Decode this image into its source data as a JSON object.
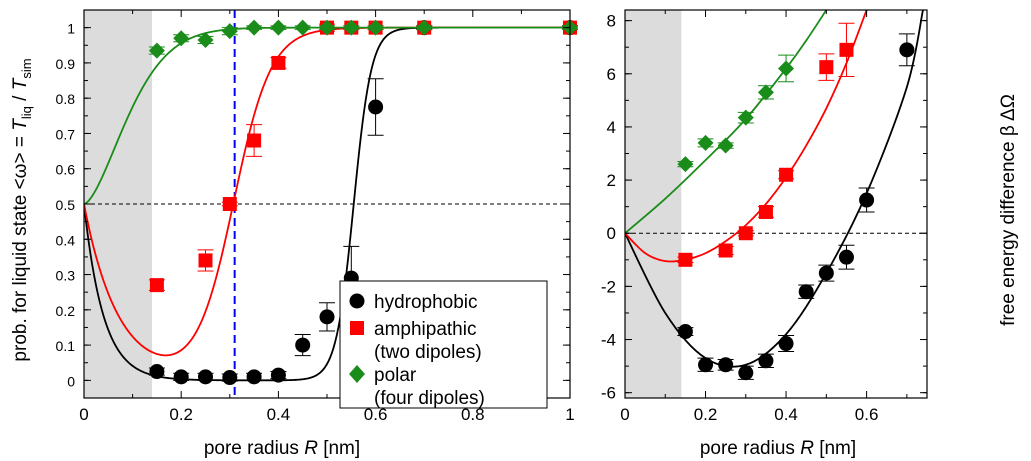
{
  "chart_data": [
    {
      "type": "scatter",
      "xlabel_prefix": "pore radius ",
      "xlabel_var": "R",
      "xlabel_unit": "  [nm]",
      "ylabel": "prob. for liquid state  <ω> = T_liq / T_sim",
      "ylabel_parts": {
        "prefix": "prob. for liquid state  <ω> = ",
        "T": "T",
        "liq": "liq",
        "slash": " / ",
        "sim": "sim"
      },
      "xlim": [
        0,
        1
      ],
      "ylim": [
        -0.05,
        1.05
      ],
      "xticks": [
        0,
        0.2,
        0.4,
        0.6,
        0.8,
        1
      ],
      "xticklabels": [
        "0",
        "0.2",
        "0.4",
        "0.6",
        "0.8",
        "1"
      ],
      "yticks": [
        0,
        0.1,
        0.2,
        0.3,
        0.4,
        0.5,
        0.6,
        0.7,
        0.8,
        0.9,
        1
      ],
      "yticklabels": [
        "0",
        "0.1",
        "0.2",
        "0.3",
        "0.4",
        "0.5",
        "0.6",
        "0.7",
        "0.8",
        "0.9",
        "1"
      ],
      "shaded_region": [
        0,
        0.14
      ],
      "hline": 0.5,
      "vline": 0.31,
      "legend_position": "bottom-right",
      "series": [
        {
          "name": "hydrophobic",
          "color": "#000000",
          "marker": "circle",
          "x": [
            0.15,
            0.2,
            0.25,
            0.3,
            0.35,
            0.4,
            0.45,
            0.5,
            0.55,
            0.6,
            0.7,
            1.0
          ],
          "y": [
            0.025,
            0.01,
            0.01,
            0.008,
            0.01,
            0.015,
            0.1,
            0.18,
            0.29,
            0.775,
            1.0,
            1.0
          ],
          "err": [
            0.01,
            0.01,
            0.01,
            0.01,
            0.01,
            0.01,
            0.03,
            0.04,
            0.09,
            0.08,
            0.005,
            0.005
          ],
          "fit": {
            "r0": 0.555,
            "k": 55,
            "amp": 0.5,
            "decay": 0.04
          }
        },
        {
          "name": "amphipathic",
          "name_line2": "(two dipoles)",
          "color": "#ff0000",
          "marker": "square",
          "x": [
            0.15,
            0.25,
            0.3,
            0.35,
            0.4,
            0.5,
            0.55,
            0.6,
            0.7,
            1.0
          ],
          "y": [
            0.27,
            0.34,
            0.5,
            0.68,
            0.9,
            1.0,
            1.0,
            1.0,
            1.0,
            1.0
          ],
          "err": [
            0.015,
            0.03,
            0.005,
            0.045,
            0.015,
            0.01,
            0.005,
            0.005,
            0.005,
            0.005
          ],
          "fit": {
            "r0": 0.308,
            "k": 26,
            "amp": 0.5,
            "decay": 0.07
          }
        },
        {
          "name": "polar",
          "name_line2": "(four dipoles)",
          "color": "#1a8c1a",
          "marker": "diamond",
          "x": [
            0.15,
            0.2,
            0.25,
            0.3,
            0.35,
            0.4,
            0.45,
            0.5,
            0.55,
            0.6,
            0.7,
            1.0
          ],
          "y": [
            0.935,
            0.97,
            0.965,
            0.99,
            1.0,
            1.0,
            1.0,
            1.0,
            1.0,
            1.0,
            1.0,
            1.0
          ],
          "err": [
            0.01,
            0.01,
            0.01,
            0.01,
            0.005,
            0.005,
            0.005,
            0.005,
            0.005,
            0.005,
            0.005,
            0.005
          ]
        }
      ]
    },
    {
      "type": "scatter",
      "xlabel_prefix": "pore radius ",
      "xlabel_var": "R",
      "xlabel_unit": "  [nm]",
      "ylabel": "free energy difference   β ΔΩ",
      "xlim": [
        0,
        0.75
      ],
      "ylim": [
        -6.2,
        8.4
      ],
      "xticks": [
        0,
        0.2,
        0.4,
        0.6
      ],
      "xticklabels": [
        "0",
        "0.2",
        "0.4",
        "0.6"
      ],
      "yticks": [
        -6,
        -4,
        -2,
        0,
        2,
        4,
        6,
        8
      ],
      "yticklabels": [
        "-6",
        "-4",
        "-2",
        "0",
        "2",
        "4",
        "6",
        "8"
      ],
      "shaded_region": [
        0,
        0.14
      ],
      "hline": 0,
      "series": [
        {
          "name": "hydrophobic",
          "color": "#000000",
          "marker": "circle",
          "x": [
            0.15,
            0.2,
            0.25,
            0.3,
            0.35,
            0.4,
            0.45,
            0.5,
            0.55,
            0.6,
            0.7
          ],
          "y": [
            -3.7,
            -4.95,
            -4.95,
            -5.25,
            -4.8,
            -4.15,
            -2.2,
            -1.5,
            -0.9,
            1.25,
            6.9
          ],
          "err": [
            0.15,
            0.25,
            0.2,
            0.25,
            0.25,
            0.3,
            0.25,
            0.3,
            0.45,
            0.45,
            0.6
          ],
          "fit": [
            [
              0,
              0
            ],
            [
              0.1,
              -3.0
            ],
            [
              0.2,
              -4.7
            ],
            [
              0.3,
              -4.95
            ],
            [
              0.4,
              -3.8
            ],
            [
              0.5,
              -1.5
            ],
            [
              0.6,
              1.5
            ],
            [
              0.7,
              5.5
            ],
            [
              0.74,
              8.4
            ]
          ]
        },
        {
          "name": "amphipathic",
          "color": "#ff0000",
          "marker": "square",
          "x": [
            0.15,
            0.25,
            0.3,
            0.35,
            0.4,
            0.5,
            0.55
          ],
          "y": [
            -1.0,
            -0.65,
            0.0,
            0.8,
            2.2,
            6.25,
            6.9
          ],
          "err": [
            0.1,
            0.15,
            0.1,
            0.2,
            0.15,
            0.5,
            1.0
          ],
          "fit": [
            [
              0,
              0
            ],
            [
              0.05,
              -0.75
            ],
            [
              0.1,
              -1.05
            ],
            [
              0.15,
              -1.0
            ],
            [
              0.2,
              -0.75
            ],
            [
              0.25,
              -0.3
            ],
            [
              0.3,
              0.3
            ],
            [
              0.35,
              1.1
            ],
            [
              0.4,
              2.1
            ],
            [
              0.45,
              3.3
            ],
            [
              0.5,
              4.7
            ],
            [
              0.55,
              6.4
            ],
            [
              0.6,
              8.4
            ]
          ]
        },
        {
          "name": "polar",
          "color": "#1a8c1a",
          "marker": "diamond",
          "x": [
            0.15,
            0.2,
            0.25,
            0.3,
            0.35,
            0.4
          ],
          "y": [
            2.6,
            3.4,
            3.3,
            4.35,
            5.3,
            6.2
          ],
          "err": [
            0.1,
            0.15,
            0.1,
            0.2,
            0.25,
            0.5
          ],
          "fit": [
            [
              0,
              0
            ],
            [
              0.1,
              1.3
            ],
            [
              0.2,
              2.75
            ],
            [
              0.3,
              4.3
            ],
            [
              0.4,
              6.2
            ],
            [
              0.45,
              7.25
            ],
            [
              0.5,
              8.4
            ]
          ]
        }
      ]
    }
  ]
}
